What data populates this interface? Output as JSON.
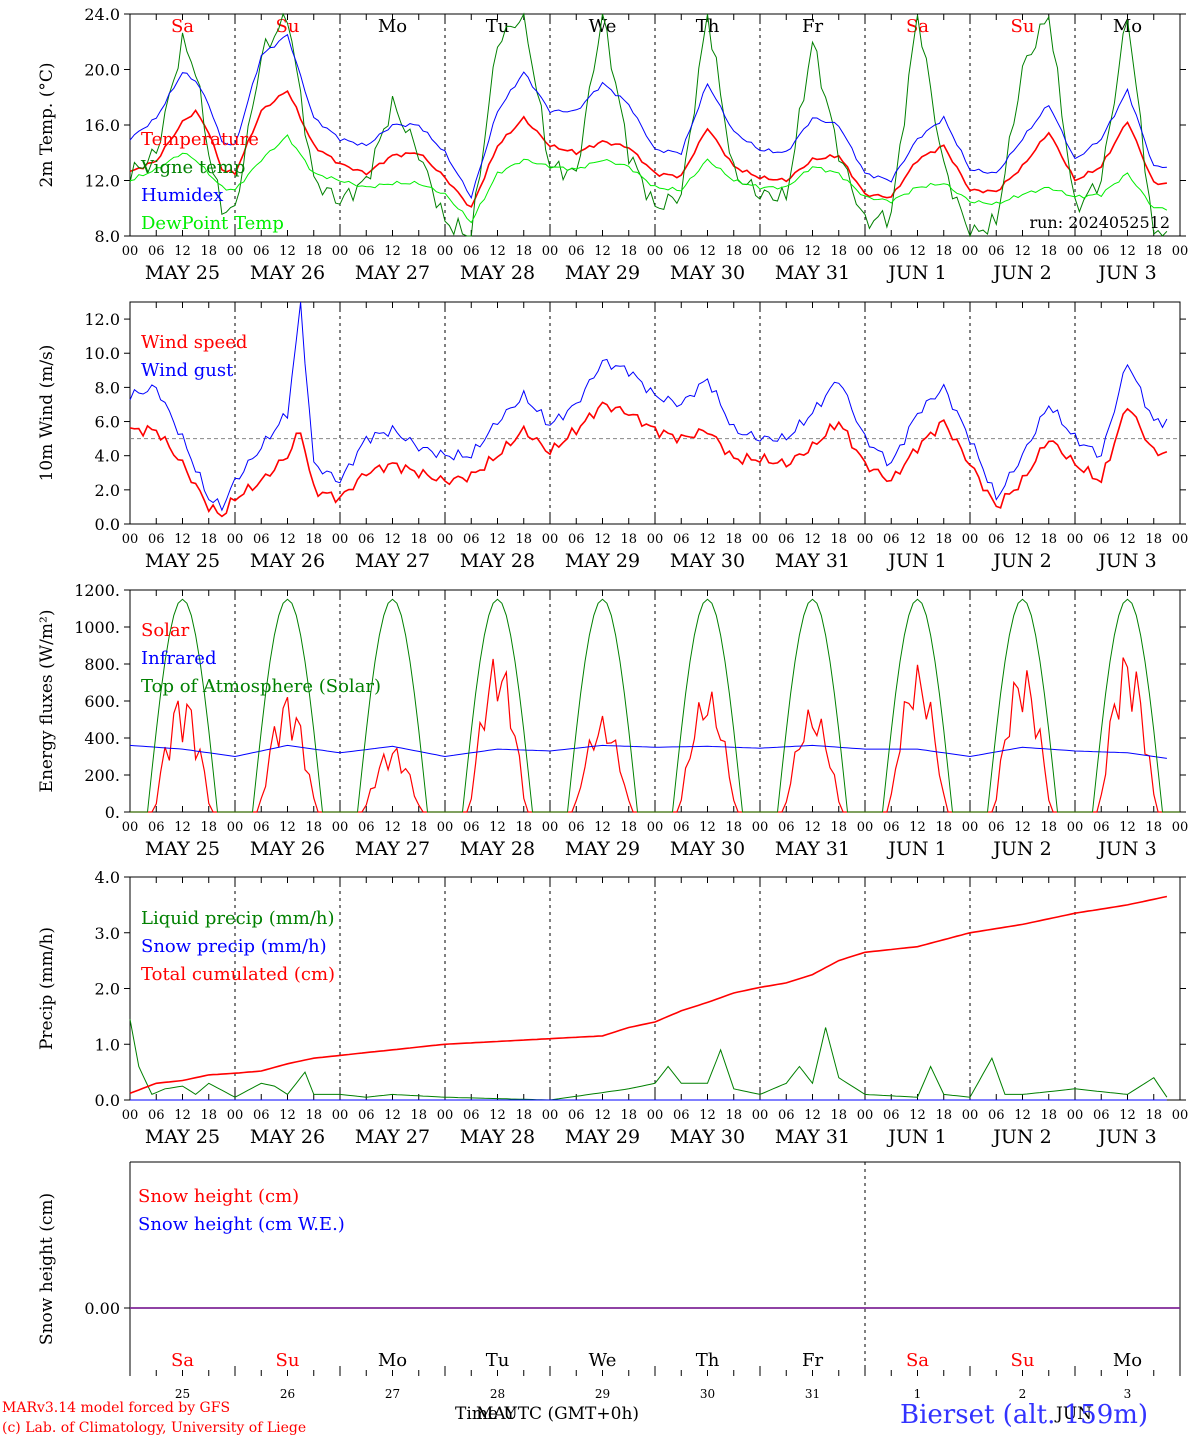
{
  "chart_data": [
    {
      "type": "line",
      "ylabel": "2m Temp. (°C)",
      "ylim": [
        8.0,
        24.0
      ],
      "yticks": [
        "8.0",
        "12.0",
        "16.0",
        "20.0",
        "24.0"
      ],
      "annotation": "run: 2024052512",
      "grid": "vertical dotted lines at 00 UTC each day",
      "legend_placement": "left",
      "series": [
        {
          "name": "Temperature",
          "color": "#ff0000",
          "x_hours": [
            0,
            6,
            12,
            15,
            18,
            21,
            24,
            30,
            36,
            42,
            48,
            54,
            60,
            66,
            72,
            78,
            84,
            90,
            96,
            102,
            108,
            114,
            120,
            126,
            132,
            138,
            144,
            150,
            156,
            162,
            168,
            174,
            180,
            186,
            192,
            198,
            204,
            210,
            216,
            222,
            228,
            234
          ],
          "values": [
            12.6,
            13.4,
            16.2,
            17.0,
            15.5,
            12.8,
            12.5,
            17.0,
            18.5,
            14.5,
            13.2,
            12.5,
            13.8,
            14.0,
            12.2,
            10.0,
            14.5,
            16.5,
            14.5,
            14.0,
            14.8,
            14.4,
            12.5,
            12.3,
            15.8,
            13.0,
            12.2,
            12.0,
            13.5,
            13.8,
            11.0,
            10.8,
            13.5,
            14.5,
            11.3,
            11.2,
            13.0,
            15.5,
            12.0,
            13.0,
            16.3,
            11.8
          ]
        },
        {
          "name": "Vigne temp",
          "color": "#008000",
          "x_hours": [
            0,
            6,
            12,
            15,
            18,
            21,
            24,
            30,
            36,
            42,
            48,
            54,
            60,
            66,
            72,
            78,
            84,
            90,
            96,
            102,
            108,
            114,
            120,
            126,
            132,
            138,
            144,
            150,
            156,
            162,
            168,
            174,
            180,
            186,
            192,
            198,
            204,
            210,
            216,
            222,
            228,
            234
          ],
          "values": [
            12.4,
            14.0,
            22.0,
            20.0,
            14.0,
            10.0,
            9.8,
            21.0,
            24.0,
            12.0,
            10.5,
            12.0,
            17.5,
            14.0,
            9.0,
            8.0,
            22.0,
            24.0,
            13.0,
            12.5,
            24.0,
            14.0,
            10.0,
            11.0,
            24.0,
            12.5,
            11.0,
            10.8,
            22.0,
            14.0,
            9.0,
            9.5,
            24.0,
            13.0,
            8.0,
            9.0,
            20.0,
            24.0,
            10.0,
            12.0,
            24.0,
            8.0
          ]
        },
        {
          "name": "Humidex",
          "color": "#0000ff",
          "x_hours": [
            0,
            6,
            12,
            15,
            18,
            21,
            24,
            30,
            36,
            42,
            48,
            54,
            60,
            66,
            72,
            78,
            84,
            90,
            96,
            102,
            108,
            114,
            120,
            126,
            132,
            138,
            144,
            150,
            156,
            162,
            168,
            174,
            180,
            186,
            192,
            198,
            204,
            210,
            216,
            222,
            228,
            234
          ],
          "values": [
            15.0,
            16.5,
            19.8,
            19.2,
            17.5,
            14.8,
            14.5,
            21.0,
            22.5,
            16.5,
            15.0,
            14.5,
            16.0,
            16.0,
            14.0,
            10.8,
            17.0,
            19.8,
            17.0,
            17.0,
            19.0,
            17.5,
            14.2,
            14.0,
            19.0,
            15.5,
            14.2,
            14.0,
            16.5,
            16.0,
            12.5,
            12.0,
            15.0,
            16.5,
            12.8,
            12.5,
            15.0,
            17.5,
            13.5,
            15.0,
            18.5,
            13.0
          ]
        },
        {
          "name": "DewPoint Temp",
          "color": "#00ee00",
          "x_hours": [
            0,
            6,
            12,
            15,
            18,
            21,
            24,
            30,
            36,
            42,
            48,
            54,
            60,
            66,
            72,
            78,
            84,
            90,
            96,
            102,
            108,
            114,
            120,
            126,
            132,
            138,
            144,
            150,
            156,
            162,
            168,
            174,
            180,
            186,
            192,
            198,
            204,
            210,
            216,
            222,
            228,
            234
          ],
          "values": [
            12.0,
            12.8,
            14.0,
            13.5,
            12.5,
            11.5,
            11.3,
            13.5,
            15.2,
            12.5,
            12.0,
            11.5,
            11.8,
            11.8,
            11.0,
            9.0,
            12.5,
            13.5,
            13.0,
            12.8,
            13.5,
            13.0,
            11.5,
            11.3,
            13.5,
            12.0,
            11.5,
            11.5,
            13.0,
            12.5,
            10.8,
            10.5,
            11.5,
            11.8,
            10.5,
            10.3,
            11.0,
            11.5,
            10.8,
            11.0,
            12.5,
            10.0
          ]
        }
      ]
    },
    {
      "type": "line",
      "ylabel": "10m Wind (m/s)",
      "ylim": [
        0.0,
        13.0
      ],
      "yticks": [
        "0.0",
        "2.0",
        "4.0",
        "6.0",
        "8.0",
        "10.0",
        "12.0"
      ],
      "reference_line": 5.0,
      "series": [
        {
          "name": "Wind speed",
          "color": "#ff0000",
          "x_hours": [
            0,
            6,
            12,
            18,
            21,
            24,
            30,
            36,
            39,
            42,
            48,
            54,
            60,
            66,
            72,
            78,
            84,
            90,
            96,
            102,
            108,
            114,
            120,
            126,
            132,
            138,
            144,
            150,
            156,
            162,
            168,
            174,
            180,
            186,
            192,
            198,
            204,
            210,
            216,
            222,
            228,
            234
          ],
          "values": [
            5.5,
            5.5,
            3.5,
            1.0,
            0.5,
            1.5,
            2.5,
            4.0,
            5.5,
            2.0,
            1.5,
            3.0,
            3.5,
            3.0,
            2.5,
            2.8,
            4.0,
            5.5,
            4.2,
            5.5,
            7.0,
            6.5,
            5.5,
            5.0,
            5.5,
            3.8,
            3.8,
            3.5,
            4.5,
            6.0,
            3.5,
            2.5,
            4.5,
            6.0,
            3.5,
            1.0,
            2.5,
            5.0,
            3.5,
            2.5,
            7.0,
            4.2
          ]
        },
        {
          "name": "Wind gust",
          "color": "#0000ff",
          "x_hours": [
            0,
            6,
            12,
            18,
            21,
            24,
            30,
            36,
            39,
            42,
            48,
            54,
            60,
            66,
            72,
            78,
            84,
            90,
            96,
            102,
            108,
            114,
            120,
            126,
            132,
            138,
            144,
            150,
            156,
            162,
            168,
            174,
            180,
            186,
            192,
            198,
            204,
            210,
            216,
            222,
            228,
            234
          ],
          "values": [
            7.5,
            8.0,
            5.0,
            1.5,
            1.0,
            2.5,
            4.5,
            6.5,
            12.8,
            3.5,
            2.5,
            5.0,
            5.5,
            4.5,
            4.0,
            4.0,
            6.0,
            7.5,
            5.8,
            7.0,
            9.5,
            9.0,
            7.5,
            7.0,
            8.5,
            5.5,
            5.0,
            5.0,
            6.5,
            8.5,
            5.0,
            3.5,
            6.5,
            8.0,
            5.0,
            1.5,
            4.0,
            7.0,
            5.0,
            4.0,
            9.5,
            6.0
          ]
        }
      ]
    },
    {
      "type": "line",
      "ylabel": "Energy fluxes (W/m²)",
      "ylim": [
        0,
        1200
      ],
      "yticks": [
        "0.",
        "200.",
        "400.",
        "600.",
        "800.",
        "1000.",
        "1200."
      ],
      "series": [
        {
          "name": "Solar",
          "color": "#ff0000",
          "daily_peak": [
            650,
            640,
            360,
            860,
            520,
            670,
            570,
            800,
            800,
            880
          ]
        },
        {
          "name": "Infrared",
          "color": "#0000ff",
          "x_hours": [
            0,
            12,
            24,
            36,
            48,
            60,
            72,
            84,
            96,
            108,
            120,
            132,
            144,
            156,
            168,
            180,
            192,
            204,
            216,
            228,
            237
          ],
          "values": [
            360,
            340,
            300,
            360,
            320,
            355,
            300,
            340,
            330,
            360,
            350,
            355,
            345,
            360,
            340,
            340,
            300,
            350,
            330,
            320,
            290
          ]
        },
        {
          "name": "Top of Atmosphere (Solar)",
          "color": "#008000",
          "daily_peak": [
            1150,
            1150,
            1150,
            1150,
            1150,
            1150,
            1150,
            1150,
            1150,
            1150
          ]
        }
      ]
    },
    {
      "type": "line",
      "ylabel": "Precip (mm/h)",
      "ylim": [
        0.0,
        4.0
      ],
      "yticks": [
        "0.0",
        "1.0",
        "2.0",
        "3.0",
        "4.0"
      ],
      "series": [
        {
          "name": "Liquid precip (mm/h)",
          "color": "#008000",
          "x_hours": [
            0,
            2,
            5,
            8,
            12,
            15,
            18,
            24,
            30,
            33,
            36,
            40,
            42,
            48,
            54,
            60,
            72,
            96,
            114,
            120,
            123,
            126,
            132,
            135,
            138,
            144,
            150,
            153,
            156,
            159,
            162,
            168,
            180,
            183,
            186,
            192,
            197,
            200,
            204,
            216,
            228,
            234,
            237
          ],
          "values": [
            1.45,
            0.6,
            0.1,
            0.2,
            0.25,
            0.1,
            0.3,
            0.05,
            0.3,
            0.25,
            0.1,
            0.5,
            0.1,
            0.1,
            0.05,
            0.1,
            0.05,
            0.0,
            0.2,
            0.3,
            0.6,
            0.3,
            0.3,
            0.9,
            0.2,
            0.1,
            0.3,
            0.6,
            0.3,
            1.3,
            0.4,
            0.1,
            0.05,
            0.6,
            0.1,
            0.05,
            0.75,
            0.1,
            0.1,
            0.2,
            0.1,
            0.4,
            0.05
          ]
        },
        {
          "name": "Snow precip (mm/h)",
          "color": "#0000ff",
          "x_hours": [
            0,
            237
          ],
          "values": [
            0.0,
            0.0
          ]
        },
        {
          "name": "Total cumulated (cm)",
          "color": "#ff0000",
          "x_hours": [
            0,
            6,
            12,
            18,
            24,
            30,
            36,
            42,
            48,
            60,
            72,
            84,
            96,
            108,
            114,
            120,
            126,
            132,
            138,
            144,
            150,
            156,
            162,
            168,
            180,
            192,
            204,
            216,
            228,
            237
          ],
          "values": [
            0.12,
            0.3,
            0.35,
            0.45,
            0.48,
            0.52,
            0.65,
            0.75,
            0.8,
            0.9,
            1.0,
            1.05,
            1.1,
            1.15,
            1.3,
            1.4,
            1.6,
            1.75,
            1.92,
            2.02,
            2.1,
            2.25,
            2.5,
            2.65,
            2.75,
            3.0,
            3.15,
            3.35,
            3.5,
            3.65
          ]
        }
      ]
    },
    {
      "type": "line",
      "ylabel": "Snow height (cm)",
      "yticks": [
        "0.00"
      ],
      "series": [
        {
          "name": "Snow height (cm)",
          "color": "#ff0000",
          "x_hours": [
            0,
            237
          ],
          "values": [
            0.0,
            0.0
          ]
        },
        {
          "name": "Snow height (cm W.E.)",
          "color": "#0000ff",
          "x_hours": [
            0,
            237
          ],
          "values": [
            0.0,
            0.0
          ]
        }
      ]
    }
  ],
  "axis": {
    "hour_ticks": [
      "00",
      "06",
      "12",
      "18"
    ],
    "end_tick": "00",
    "date_labels": [
      "MAY 25",
      "MAY 26",
      "MAY 27",
      "MAY 28",
      "MAY 29",
      "MAY 30",
      "MAY 31",
      "JUN  1",
      "JUN  2",
      "JUN  3"
    ],
    "day_names": [
      "Sa",
      "Su",
      "Mo",
      "Tu",
      "We",
      "Th",
      "Fr",
      "Sa",
      "Su",
      "Mo"
    ],
    "day_name_colors": [
      "#ff0000",
      "#ff0000",
      "#000000",
      "#000000",
      "#000000",
      "#000000",
      "#000000",
      "#ff0000",
      "#ff0000",
      "#000000"
    ],
    "day_numbers": [
      "25",
      "26",
      "27",
      "28",
      "29",
      "30",
      "31",
      "1",
      "2",
      "3"
    ],
    "bottom_month_left": "MAY",
    "bottom_month_right": "JUN"
  },
  "footer": {
    "model_line": "MARv3.14 model forced by GFS",
    "copyright_line": "(c) Lab. of Climatology, University of Liege",
    "time_label": "Time UTC (GMT+0h)",
    "station": "Bierset (alt. 159m)"
  }
}
